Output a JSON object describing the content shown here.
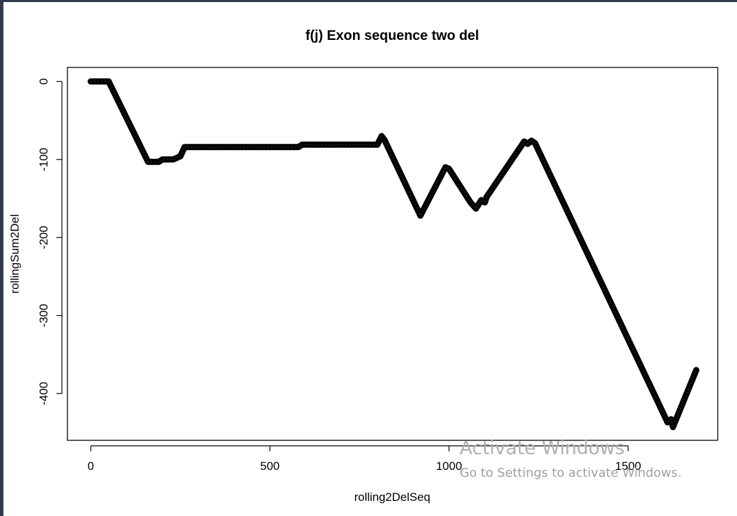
{
  "chart_data": {
    "type": "line",
    "title": "f(j) Exon sequence two del",
    "xlabel": "rolling2DelSeq",
    "ylabel": "rollingSum2Del",
    "xlim": [
      -65,
      1750
    ],
    "ylim": [
      -460,
      18
    ],
    "xticks": [
      0,
      500,
      1000,
      1500
    ],
    "yticks": [
      0,
      -100,
      -200,
      -300,
      -400
    ],
    "grid": false,
    "series": [
      {
        "x": [
          0,
          50,
          160,
          190,
          200,
          230,
          250,
          262,
          580,
          590,
          800,
          812,
          820,
          920,
          990,
          1000,
          1060,
          1075,
          1090,
          1100,
          1105,
          1210,
          1220,
          1230,
          1240,
          1610,
          1620,
          1625,
          1690
        ],
        "y": [
          0,
          0,
          -103,
          -103,
          -100,
          -100,
          -96,
          -84,
          -84,
          -81,
          -81,
          -70,
          -75,
          -172,
          -110,
          -112,
          -155,
          -163,
          -152,
          -155,
          -148,
          -77,
          -80,
          -76,
          -79,
          -437,
          -433,
          -443,
          -370
        ]
      }
    ]
  },
  "watermark": {
    "line1": "Activate Windows",
    "line2": "Go to Settings to activate Windows."
  }
}
